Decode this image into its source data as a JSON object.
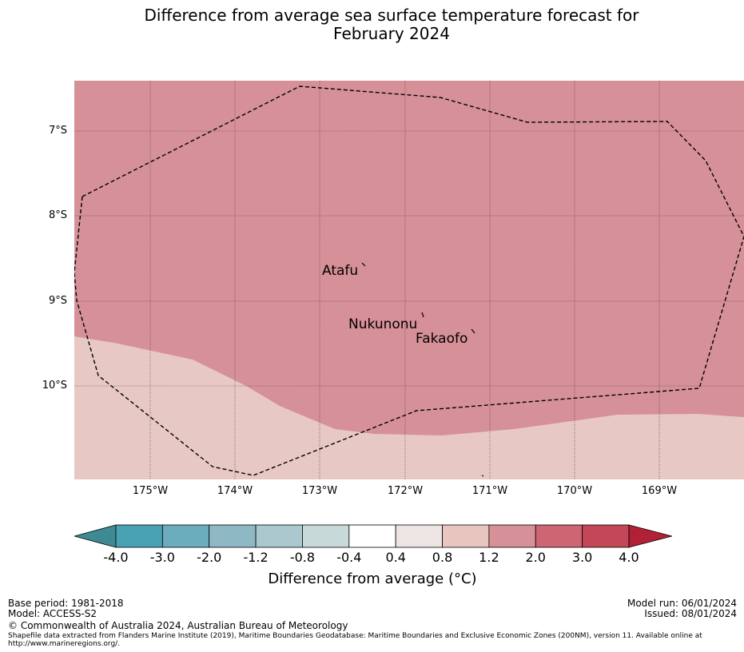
{
  "title_line1": "Difference from average sea surface temperature forecast for",
  "title_line2": "February 2024",
  "map": {
    "fill_warm": "#d69097",
    "fill_mild": "#e8c8c3",
    "places": [
      "Atafu",
      "Nukunonu",
      "Fakaofo"
    ],
    "lat_labels": [
      "7°S",
      "8°S",
      "9°S",
      "10°S"
    ],
    "lon_labels": [
      "175°W",
      "174°W",
      "173°W",
      "172°W",
      "171°W",
      "170°W",
      "169°W"
    ],
    "boundary": "Exclusive Economic Zone (dashed)"
  },
  "colorbar": {
    "ticks": [
      "-4.0",
      "-3.0",
      "-2.0",
      "-1.2",
      "-0.8",
      "-0.4",
      "0.4",
      "0.8",
      "1.2",
      "2.0",
      "3.0",
      "4.0"
    ],
    "colors": [
      "#3d8a95",
      "#48a2b3",
      "#6cadbd",
      "#8db8c4",
      "#aac8ce",
      "#c8d9da",
      "#ffffff",
      "#ede5e3",
      "#e8c6c0",
      "#d69097",
      "#cd6672",
      "#c34756",
      "#b22035"
    ],
    "label": "Difference from average (°C)"
  },
  "footer": {
    "base_period": "Base period: 1981-2018",
    "model": "Model: ACCESS-S2",
    "model_run": "Model run: 06/01/2024",
    "issued": "Issued: 08/01/2024",
    "copyright": "© Commonwealth of Australia 2024, Australian Bureau of Meteorology",
    "shapefile_line1": "Shapefile data extracted from Flanders Marine Institute (2019), Maritime Boundaries Geodatabase: Maritime Boundaries and Exclusive Economic Zones (200NM), version 11. Available online at",
    "shapefile_line2": "http://www.marineregions.org/."
  }
}
